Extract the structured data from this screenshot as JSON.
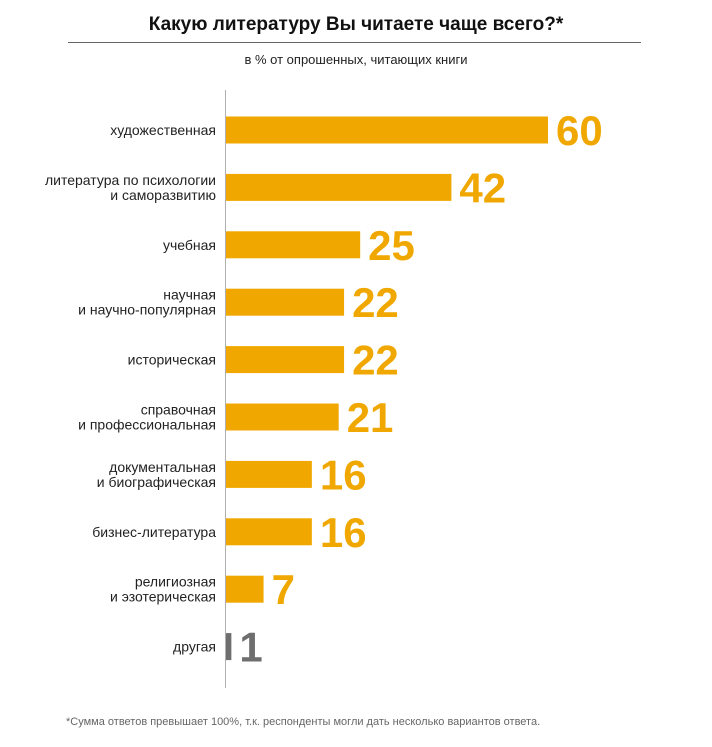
{
  "colors": {
    "bar": "#f0a800",
    "other": "#6e6e6e",
    "axis": "#b0b0b0"
  },
  "footnote": "*Сумма ответов превышает 100%, т.к. респонденты могли дать несколько вариантов ответа.",
  "chart_data": {
    "type": "bar",
    "orientation": "horizontal",
    "title": "Какую литературу Вы читаете чаще всего?*",
    "subtitle": "в % от опрошенных, читающих книги",
    "categories": [
      [
        "художественная"
      ],
      [
        "литература по психологии",
        "и саморазвитию"
      ],
      [
        "учебная"
      ],
      [
        "научная",
        "и научно-популярная"
      ],
      [
        "историческая"
      ],
      [
        "справочная",
        "и профессиональная"
      ],
      [
        "документальная",
        "и биографическая"
      ],
      [
        "бизнес-литература"
      ],
      [
        "религиозная",
        "и эзотерическая"
      ],
      [
        "другая"
      ]
    ],
    "values": [
      60,
      42,
      25,
      22,
      22,
      21,
      16,
      16,
      7,
      1
    ],
    "value_labels": [
      "60",
      "42",
      "25",
      "22",
      "22",
      "21",
      "16",
      "16",
      "7",
      "1"
    ],
    "highlight_last": true,
    "xlim": [
      0,
      60
    ],
    "grid": false
  }
}
